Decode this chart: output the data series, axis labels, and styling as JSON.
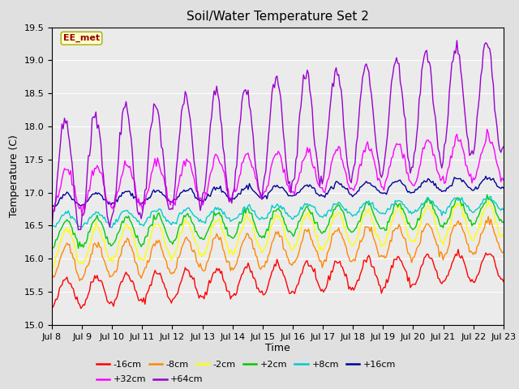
{
  "title": "Soil/Water Temperature Set 2",
  "xlabel": "Time",
  "ylabel": "Temperature (C)",
  "ylim": [
    15.0,
    19.5
  ],
  "annotation": "EE_met",
  "series": [
    {
      "label": "-16cm",
      "color": "#ff0000",
      "base": 15.48,
      "amp": 0.22,
      "trend": 0.028,
      "noise": 0.03,
      "phase": -1.5
    },
    {
      "label": "-8cm",
      "color": "#ff8800",
      "base": 15.93,
      "amp": 0.25,
      "trend": 0.028,
      "noise": 0.03,
      "phase": -1.5
    },
    {
      "label": "-2cm",
      "color": "#ffff00",
      "base": 16.17,
      "amp": 0.27,
      "trend": 0.028,
      "noise": 0.03,
      "phase": -1.5
    },
    {
      "label": "+2cm",
      "color": "#00cc00",
      "base": 16.36,
      "amp": 0.2,
      "trend": 0.025,
      "noise": 0.025,
      "phase": -1.5
    },
    {
      "label": "+8cm",
      "color": "#00cccc",
      "base": 16.57,
      "amp": 0.1,
      "trend": 0.018,
      "noise": 0.02,
      "phase": -1.5
    },
    {
      "label": "+16cm",
      "color": "#000099",
      "base": 16.88,
      "amp": 0.09,
      "trend": 0.018,
      "noise": 0.018,
      "phase": -1.5
    },
    {
      "label": "+32cm",
      "color": "#ff00ff",
      "base": 17.02,
      "amp": 0.32,
      "trend": 0.035,
      "noise": 0.04,
      "phase": -1.5
    },
    {
      "label": "+64cm",
      "color": "#9900cc",
      "base": 17.22,
      "amp": 0.85,
      "trend": 0.085,
      "noise": 0.06,
      "phase": -1.2
    }
  ],
  "xticks_labels": [
    "Jul 8",
    "Jul 9",
    "Jul 10",
    "Jul 11",
    "Jul 12",
    "Jul 13",
    "Jul 14",
    "Jul 15",
    "Jul 16",
    "Jul 17",
    "Jul 18",
    "Jul 19",
    "Jul 20",
    "Jul 21",
    "Jul 22",
    "Jul 23"
  ],
  "n_points": 360,
  "bg_color": "#e0e0e0",
  "plot_bg": "#ebebeb",
  "grid_color": "#ffffff",
  "title_fontsize": 11,
  "axis_fontsize": 8,
  "legend_fontsize": 8
}
